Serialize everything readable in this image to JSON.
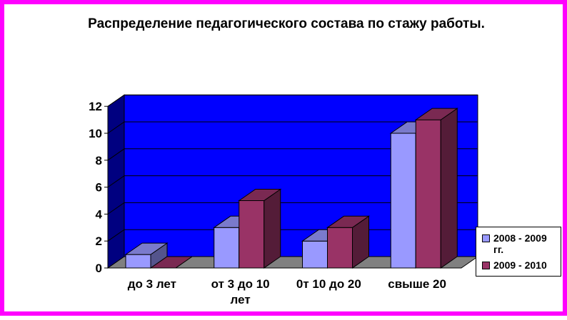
{
  "chart_data": {
    "type": "bar",
    "title": "Распределение педагогического состава по стажу работы.",
    "categories": [
      "до 3 лет",
      "от 3 до 10 лет",
      "0т 10 до 20",
      "свыше 20"
    ],
    "series": [
      {
        "name": "2008 - 2009 гг.",
        "values": [
          1,
          3,
          2,
          10
        ],
        "color": "#9999ff"
      },
      {
        "name": "2009 - 2010",
        "values": [
          0,
          5,
          3,
          11
        ],
        "color": "#993366"
      }
    ],
    "yticks": [
      0,
      2,
      4,
      6,
      8,
      10,
      12
    ],
    "ylim": [
      0,
      12
    ],
    "grid": true,
    "legend_position": "right",
    "colors": {
      "wall": "#0000ff",
      "floor": "#808080",
      "frame": "#ff00ff"
    }
  }
}
